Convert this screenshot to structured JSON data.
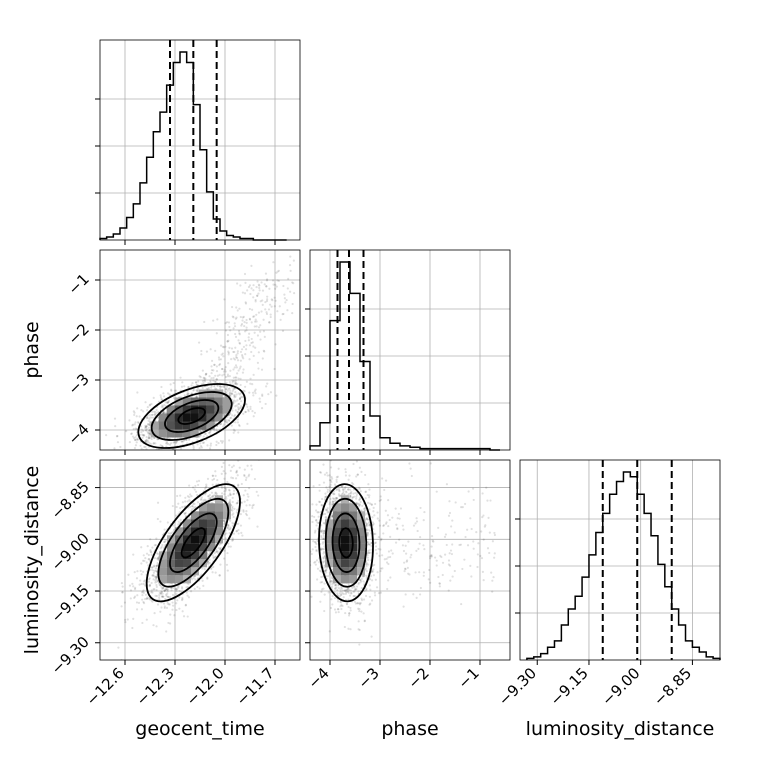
{
  "chart_data": {
    "type": "corner",
    "parameters": [
      "geocent_time",
      "phase",
      "luminosity_distance"
    ],
    "ranges": {
      "geocent_time": [
        -12.75,
        -11.55
      ],
      "phase": [
        -4.4,
        -0.4
      ],
      "luminosity_distance": [
        -9.35,
        -8.77
      ]
    },
    "ticks": {
      "geocent_time": [
        -12.6,
        -12.3,
        -12.0,
        -11.7
      ],
      "phase": [
        -4,
        -3,
        -2,
        -1
      ],
      "luminosity_distance": [
        -9.3,
        -9.15,
        -9.0,
        -8.85
      ]
    },
    "tick_labels": {
      "geocent_time": [
        "−12.6",
        "−12.3",
        "−12.0",
        "−11.7"
      ],
      "phase": [
        "−4",
        "−3",
        "−2",
        "−1"
      ],
      "luminosity_distance": [
        "−9.30",
        "−9.15",
        "−9.00",
        "−8.85"
      ]
    },
    "grid": true,
    "histograms": {
      "geocent_time": {
        "quantiles": [
          -12.33,
          -12.19,
          -12.05
        ],
        "edges": [
          -12.75,
          -12.71,
          -12.67,
          -12.63,
          -12.59,
          -12.55,
          -12.51,
          -12.47,
          -12.43,
          -12.39,
          -12.35,
          -12.31,
          -12.27,
          -12.23,
          -12.19,
          -12.15,
          -12.11,
          -12.07,
          -12.03,
          -11.99,
          -11.95,
          -11.91,
          -11.87,
          -11.83,
          -11.79,
          -11.75,
          -11.71,
          -11.67,
          -11.63
        ],
        "counts": [
          1,
          2,
          4,
          8,
          15,
          24,
          38,
          55,
          72,
          85,
          103,
          118,
          125,
          118,
          90,
          60,
          32,
          14,
          6,
          3,
          2,
          1,
          1,
          0,
          0,
          0,
          0,
          0
        ]
      },
      "phase": {
        "quantiles": [
          -3.85,
          -3.62,
          -3.33
        ],
        "edges": [
          -4.4,
          -4.2,
          -4.0,
          -3.8,
          -3.6,
          -3.4,
          -3.2,
          -3.0,
          -2.8,
          -2.6,
          -2.4,
          -2.2,
          -2.0,
          -1.8,
          -1.6,
          -1.4,
          -1.2,
          -1.0,
          -0.8,
          -0.6
        ],
        "counts": [
          3,
          20,
          95,
          138,
          115,
          65,
          25,
          9,
          5,
          3,
          2,
          1,
          1,
          1,
          1,
          1,
          1,
          1,
          0
        ]
      },
      "luminosity_distance": {
        "quantiles": [
          -9.11,
          -9.01,
          -8.91
        ],
        "edges": [
          -9.33,
          -9.31,
          -9.29,
          -9.27,
          -9.25,
          -9.23,
          -9.21,
          -9.19,
          -9.17,
          -9.15,
          -9.13,
          -9.11,
          -9.09,
          -9.07,
          -9.05,
          -9.03,
          -9.01,
          -8.99,
          -8.97,
          -8.95,
          -8.93,
          -8.91,
          -8.89,
          -8.87,
          -8.85,
          -8.83,
          -8.81,
          -8.79,
          -8.77
        ],
        "counts": [
          1,
          2,
          4,
          8,
          12,
          22,
          32,
          40,
          52,
          66,
          80,
          92,
          104,
          112,
          118,
          115,
          104,
          92,
          78,
          60,
          46,
          32,
          22,
          12,
          8,
          5,
          2,
          1
        ]
      }
    },
    "density_2d": [
      {
        "x_param": "geocent_time",
        "y_param": "phase",
        "center": [
          -12.2,
          -3.72
        ],
        "spread": [
          0.16,
          0.32
        ],
        "correlation": 0.5,
        "peak": [
          -12.23,
          -3.75
        ]
      },
      {
        "x_param": "geocent_time",
        "y_param": "luminosity_distance",
        "center": [
          -12.19,
          -9.01
        ],
        "spread": [
          0.14,
          0.085
        ],
        "correlation": 0.7,
        "peak": [
          -12.18,
          -9.0
        ]
      },
      {
        "x_param": "phase",
        "y_param": "luminosity_distance",
        "center": [
          -3.68,
          -9.01
        ],
        "spread": [
          0.27,
          0.085
        ],
        "correlation": -0.05,
        "peak": [
          -3.7,
          -9.0
        ]
      }
    ],
    "contour_levels_sigma": [
      0.5,
      1.0,
      1.5,
      2.0
    ]
  }
}
